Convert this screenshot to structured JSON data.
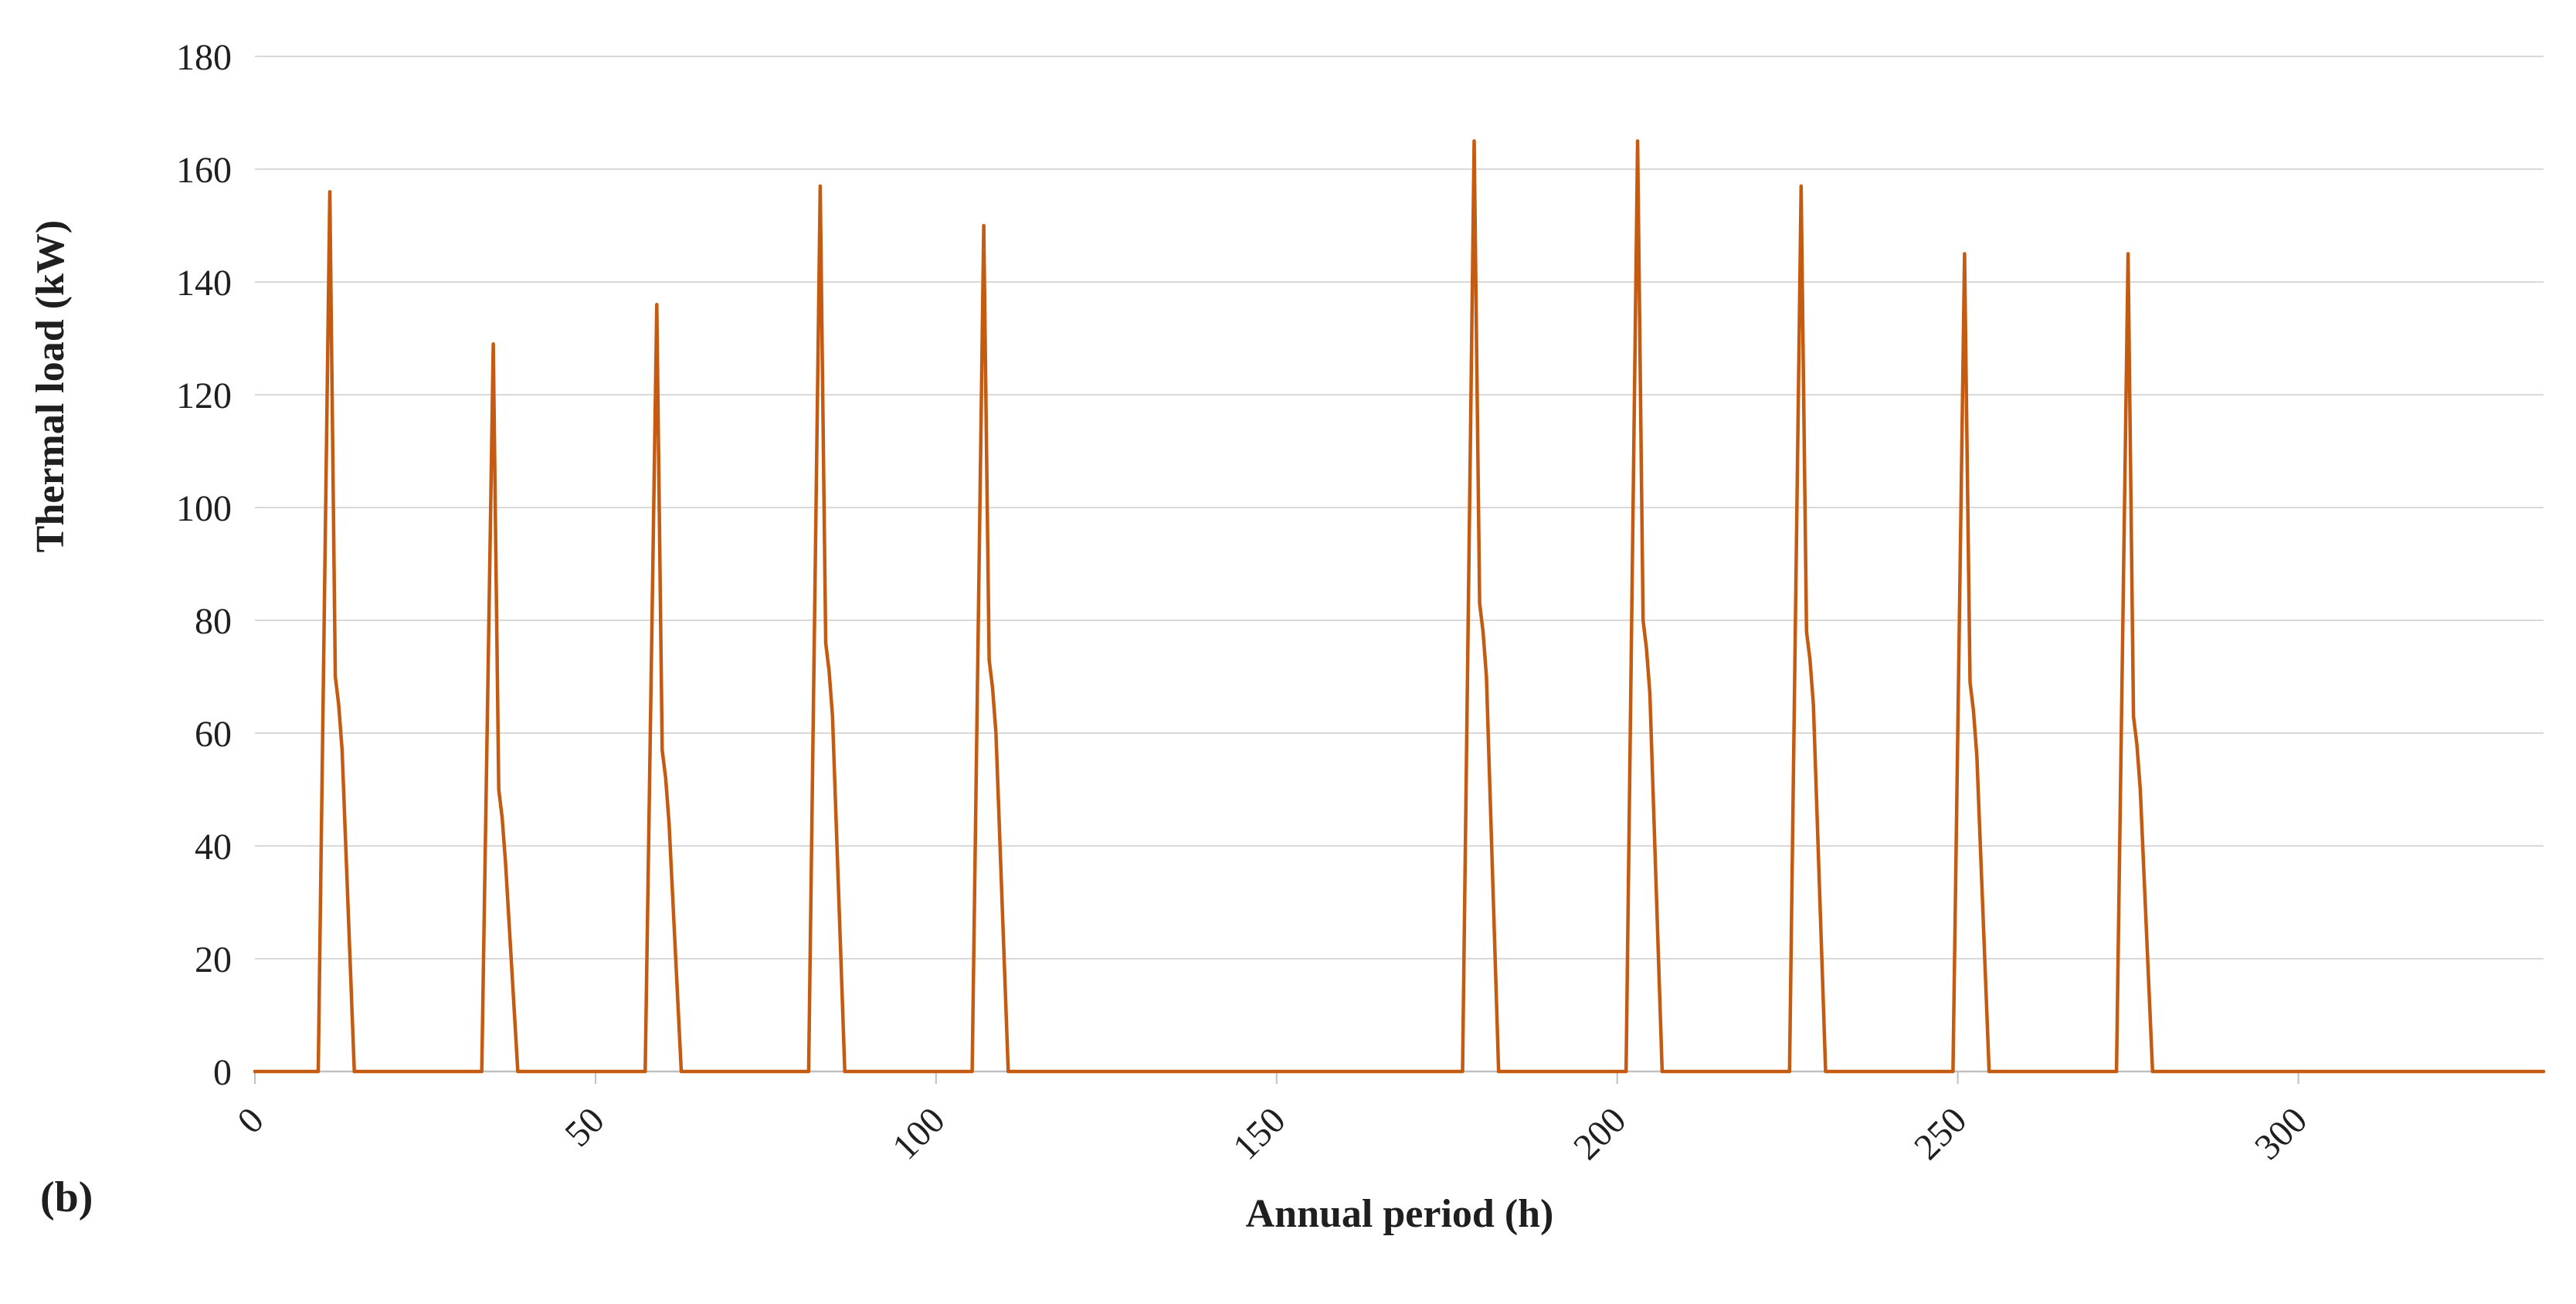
{
  "figure": {
    "panel_label": "(b)"
  },
  "chart_data": {
    "type": "line",
    "title": "",
    "xlabel": "Annual period (h)",
    "ylabel": "Thermal load (kW)",
    "xlim": [
      0,
      336
    ],
    "ylim": [
      0,
      180
    ],
    "x_ticks": [
      0,
      50,
      100,
      150,
      200,
      250,
      300
    ],
    "y_ticks": [
      0,
      20,
      40,
      60,
      80,
      100,
      120,
      140,
      160,
      180
    ],
    "grid": "horizontal",
    "legend": "none",
    "x_tick_rotation_deg": -45,
    "colors": {
      "series": "#C55A11",
      "gridline": "#D9D9D9",
      "axis_line": "#BFBFBF",
      "text": "#1F1F1F",
      "background": "#FFFFFF"
    },
    "series": [
      {
        "name": "Thermal load",
        "color": "#C55A11",
        "baseline_kw": 0,
        "x_start_h": 0,
        "x_end_h": 336,
        "spike_rise_lead_h": 1.7,
        "spike_tail_lag_h": 3.6,
        "spikes": [
          {
            "peak_h": 11,
            "peak_kw": 156,
            "shoulder_kw": 65
          },
          {
            "peak_h": 35,
            "peak_kw": 129,
            "shoulder_kw": 45
          },
          {
            "peak_h": 59,
            "peak_kw": 136,
            "shoulder_kw": 52
          },
          {
            "peak_h": 83,
            "peak_kw": 157,
            "shoulder_kw": 71
          },
          {
            "peak_h": 107,
            "peak_kw": 150,
            "shoulder_kw": 68
          },
          {
            "peak_h": 179,
            "peak_kw": 165,
            "shoulder_kw": 78
          },
          {
            "peak_h": 203,
            "peak_kw": 165,
            "shoulder_kw": 75
          },
          {
            "peak_h": 227,
            "peak_kw": 157,
            "shoulder_kw": 73
          },
          {
            "peak_h": 251,
            "peak_kw": 145,
            "shoulder_kw": 64
          },
          {
            "peak_h": 275,
            "peak_kw": 145,
            "shoulder_kw": 58
          }
        ]
      }
    ]
  }
}
